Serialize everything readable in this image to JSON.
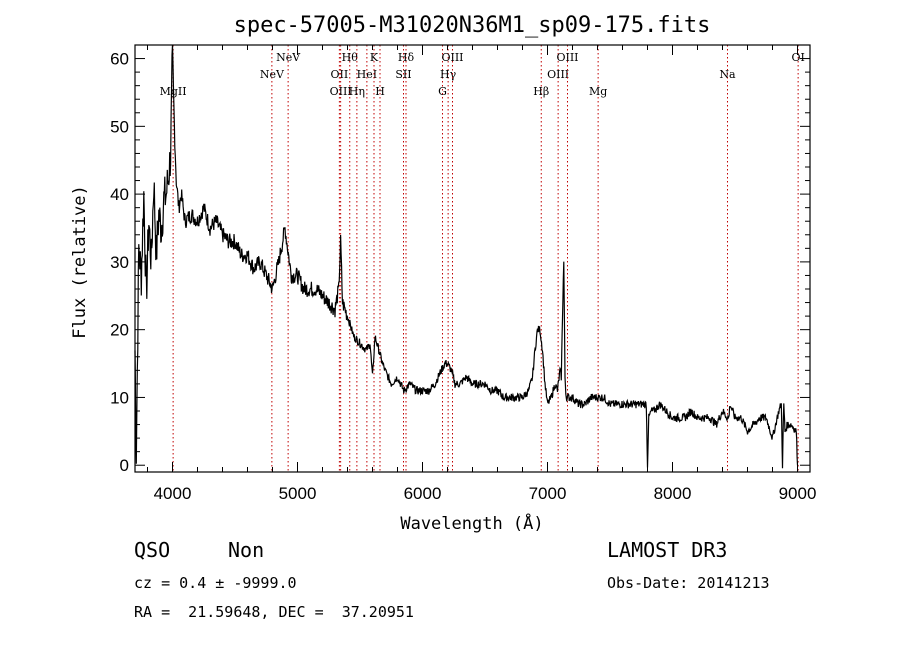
{
  "chart_data": {
    "type": "line",
    "title": "spec-57005-M31020N36M1_sp09-175.fits",
    "xlabel": "Wavelength (Å)",
    "ylabel": "Flux (relative)",
    "xlim": [
      3700,
      9100
    ],
    "ylim": [
      -1,
      62
    ],
    "xticks": [
      4000,
      5000,
      6000,
      7000,
      8000,
      9000
    ],
    "yticks": [
      0,
      10,
      20,
      30,
      40,
      50,
      60
    ],
    "grid": false,
    "series": [
      {
        "name": "spectrum",
        "x": [
          3700,
          3710,
          3730,
          3750,
          3770,
          3790,
          3810,
          3830,
          3850,
          3870,
          3890,
          3910,
          3930,
          3950,
          3970,
          3985,
          4000,
          4015,
          4030,
          4050,
          4070,
          4100,
          4150,
          4200,
          4250,
          4300,
          4350,
          4400,
          4450,
          4500,
          4550,
          4600,
          4650,
          4700,
          4750,
          4800,
          4850,
          4900,
          4950,
          5000,
          5050,
          5100,
          5150,
          5200,
          5250,
          5300,
          5330,
          5345,
          5360,
          5400,
          5450,
          5500,
          5550,
          5580,
          5600,
          5620,
          5650,
          5680,
          5700,
          5750,
          5800,
          5850,
          5900,
          5950,
          6000,
          6050,
          6100,
          6150,
          6180,
          6200,
          6230,
          6260,
          6300,
          6350,
          6400,
          6450,
          6500,
          6550,
          6600,
          6650,
          6700,
          6750,
          6800,
          6850,
          6880,
          6900,
          6920,
          6940,
          6960,
          6980,
          7000,
          7030,
          7060,
          7080,
          7100,
          7110,
          7120,
          7130,
          7140,
          7150,
          7170,
          7200,
          7250,
          7300,
          7350,
          7400,
          7450,
          7500,
          7550,
          7600,
          7650,
          7700,
          7750,
          7790,
          7800,
          7810,
          7830,
          7850,
          7900,
          7950,
          8000,
          8050,
          8100,
          8150,
          8200,
          8250,
          8300,
          8350,
          8400,
          8440,
          8450,
          8460,
          8500,
          8550,
          8600,
          8650,
          8700,
          8750,
          8800,
          8850,
          8870,
          8880,
          8890,
          8900,
          8920,
          8950,
          8990,
          9000
        ],
        "y": [
          17,
          2,
          32,
          28,
          40,
          25,
          36,
          30,
          42,
          31,
          37,
          35,
          39,
          40,
          43,
          46,
          61,
          50,
          42,
          38,
          40,
          36,
          37,
          36,
          38,
          35,
          36,
          34,
          33,
          33,
          31,
          31,
          29,
          30,
          28,
          26,
          30,
          35,
          28,
          28,
          26,
          26,
          26,
          25,
          24,
          23,
          26,
          33,
          24,
          22,
          19,
          18,
          17,
          18,
          13,
          19,
          17,
          15,
          14,
          12,
          13,
          11,
          12,
          11,
          11,
          11,
          12,
          14,
          15,
          15,
          14,
          12,
          12,
          13,
          12,
          12,
          12,
          11,
          11,
          10,
          10,
          10,
          10,
          11,
          13,
          17,
          20,
          20,
          17,
          12,
          9,
          10,
          12,
          11,
          14,
          13,
          22,
          30,
          13,
          10,
          10,
          10,
          9,
          9,
          10,
          10,
          10,
          9,
          9,
          9,
          9,
          9,
          9,
          9,
          0,
          7,
          8,
          8,
          9,
          8,
          7,
          7,
          7,
          8,
          7,
          7,
          7,
          6,
          8,
          7,
          7,
          9,
          7,
          7,
          5,
          6,
          7,
          7,
          4,
          8,
          9,
          0,
          9,
          5,
          6,
          6,
          5,
          0
        ]
      }
    ],
    "emission_lines": [
      {
        "label": "MgII",
        "wavelength": 4005,
        "row": 3
      },
      {
        "label": "NeV",
        "wavelength": 4795,
        "row": 2
      },
      {
        "label": "NeV",
        "wavelength": 4925,
        "row": 1
      },
      {
        "label": "OII",
        "wavelength": 5335,
        "row": 2
      },
      {
        "label": "OIII",
        "wavelength": 5345,
        "row": 3
      },
      {
        "label": "Hθ",
        "wavelength": 5418,
        "row": 1
      },
      {
        "label": "Hη",
        "wavelength": 5475,
        "row": 3
      },
      {
        "label": "HeI",
        "wavelength": 5555,
        "row": 2
      },
      {
        "label": "K",
        "wavelength": 5612,
        "row": 1
      },
      {
        "label": "H",
        "wavelength": 5660,
        "row": 3
      },
      {
        "label": "Hδ",
        "wavelength": 5868,
        "row": 1
      },
      {
        "label": "SII",
        "wavelength": 5848,
        "row": 2
      },
      {
        "label": "G",
        "wavelength": 6160,
        "row": 3
      },
      {
        "label": "Hγ",
        "wavelength": 6205,
        "row": 2
      },
      {
        "label": "OIII",
        "wavelength": 6240,
        "row": 1
      },
      {
        "label": "Hβ",
        "wavelength": 6950,
        "row": 3
      },
      {
        "label": "OIII",
        "wavelength": 7085,
        "row": 2
      },
      {
        "label": "OIII",
        "wavelength": 7160,
        "row": 1
      },
      {
        "label": "Mg",
        "wavelength": 7405,
        "row": 3
      },
      {
        "label": "Na",
        "wavelength": 8440,
        "row": 2
      },
      {
        "label": "OI",
        "wavelength": 9005,
        "row": 1
      }
    ]
  },
  "footer": {
    "class_label": "QSO",
    "subclass_label": "Non",
    "survey": "LAMOST DR3",
    "cz": "cz = 0.4 ± -9999.0",
    "obs_date": "Obs-Date: 20141213",
    "coords": "RA =  21.59648, DEC =  37.20951"
  }
}
